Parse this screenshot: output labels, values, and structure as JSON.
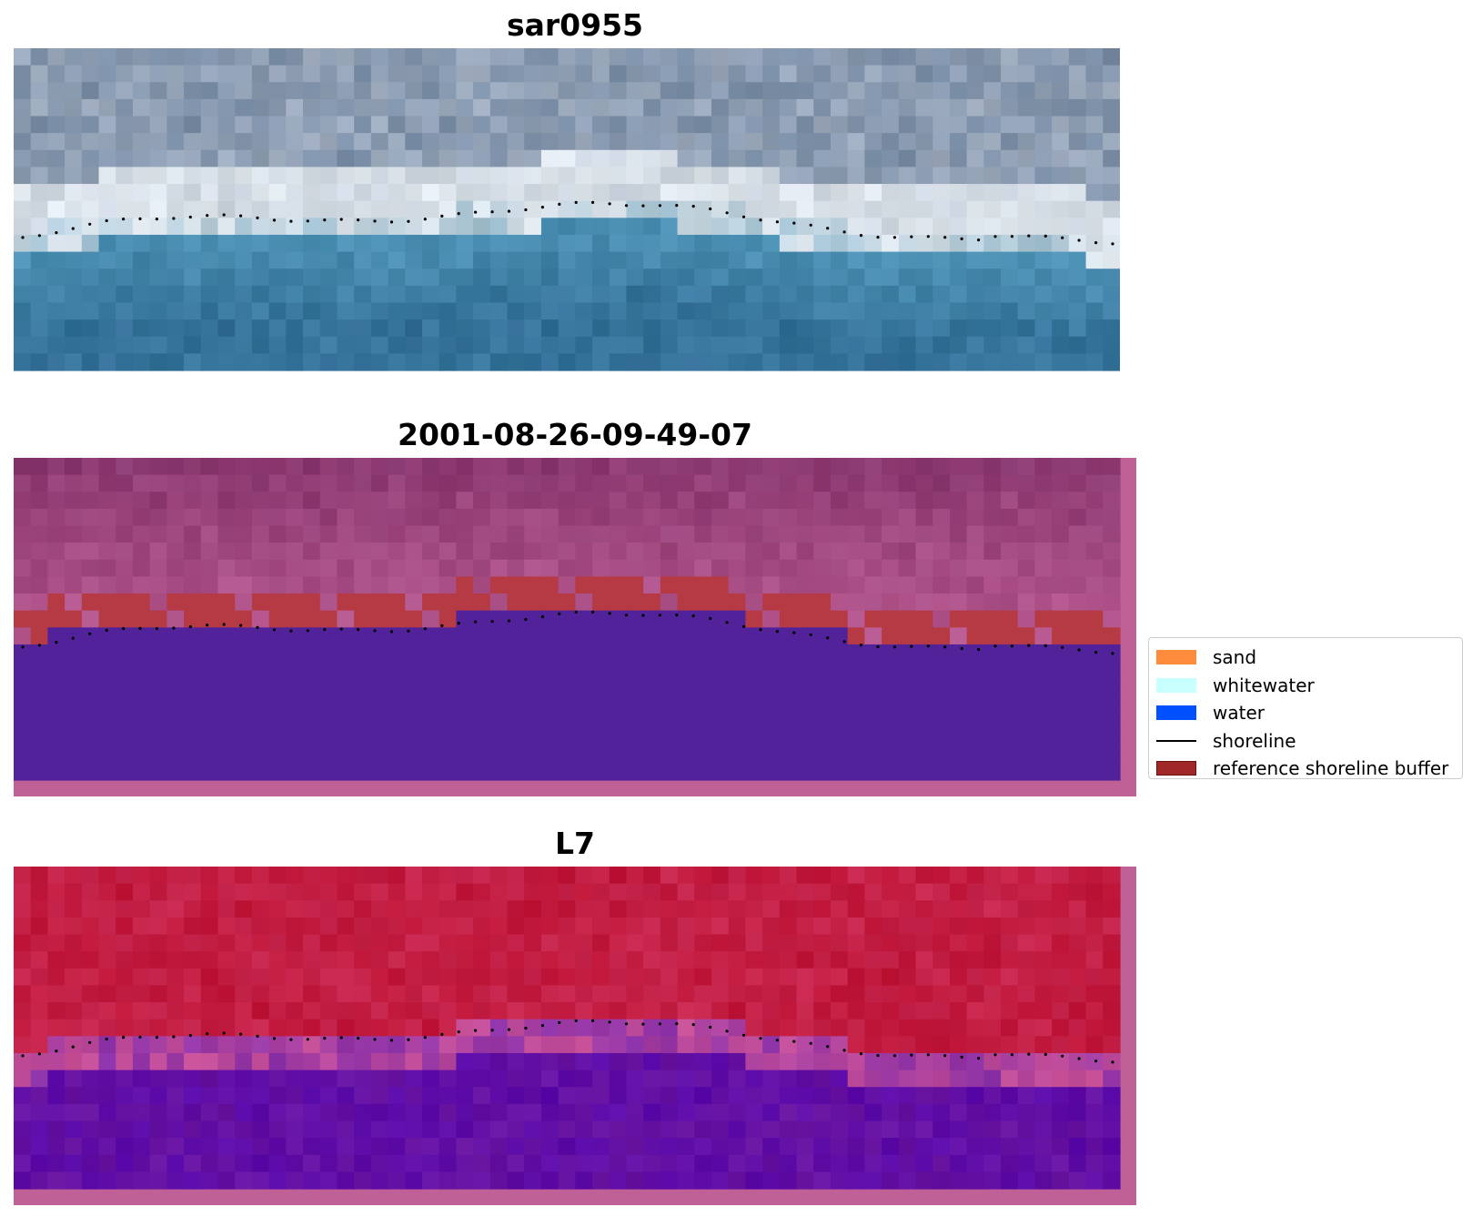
{
  "panels": [
    {
      "title": "sar0955",
      "variant": "rgb"
    },
    {
      "title": "2001-08-26-09-49-07",
      "variant": "classified"
    },
    {
      "title": "L7",
      "variant": "index"
    }
  ],
  "legend": {
    "items": [
      {
        "label": "sand",
        "kind": "patch",
        "color": "#ff8c3c"
      },
      {
        "label": "whitewater",
        "kind": "patch",
        "color": "#c8ffff"
      },
      {
        "label": "water",
        "kind": "patch",
        "color": "#0050ff"
      },
      {
        "label": "shoreline",
        "kind": "line",
        "color": "#000000"
      },
      {
        "label": "reference shoreline buffer",
        "kind": "patch",
        "color": "#a02828"
      }
    ]
  },
  "colors": {
    "frame": "#bf6096",
    "water_class": "#52229a",
    "buffer_overlay": "#b53a44",
    "shoreline": "#000000"
  }
}
